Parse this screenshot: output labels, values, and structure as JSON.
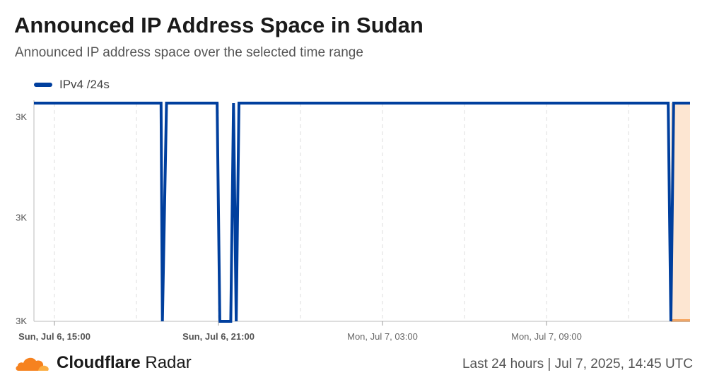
{
  "header": {
    "title": "Announced IP Address Space in Sudan",
    "subtitle": "Announced IP address space over the selected time range"
  },
  "footer": {
    "brand_bold": "Cloudflare",
    "brand_rest": " Radar",
    "range_label": "Last 24 hours | Jul 7, 2025, 14:45 UTC"
  },
  "colors": {
    "series": "#003f9e",
    "highlight_fill": "#fde6d2",
    "highlight_line": "#f6a25a",
    "grid": "#dddddd",
    "axis": "#bbbbbb",
    "logo_orange": "#f6821f",
    "logo_light": "#fbad41"
  },
  "icons": {
    "logo": "cloudflare-cloud-icon"
  },
  "chart_data": {
    "type": "line",
    "title": "Announced IP Address Space in Sudan",
    "subtitle": "Announced IP address space over the selected time range",
    "xlabel": "",
    "ylabel": "",
    "x_range_hours": [
      -0.75,
      23.25
    ],
    "y_tick_labels": [
      "3K",
      "3K",
      "3K"
    ],
    "y_tick_levels": [
      "high",
      "mid",
      "low"
    ],
    "x_ticks": [
      {
        "label": "Sun, Jul 6, 15:00",
        "hour": 0,
        "bold": true
      },
      {
        "label": "Sun, Jul 6, 21:00",
        "hour": 6,
        "bold": true
      },
      {
        "label": "Mon, Jul 7, 03:00",
        "hour": 12,
        "bold": false
      },
      {
        "label": "Mon, Jul 7, 09:00",
        "hour": 18,
        "bold": false
      }
    ],
    "grid_hours": [
      0,
      3,
      6,
      9,
      12,
      15,
      18,
      21
    ],
    "grid": true,
    "legend_position": "top-left",
    "series": [
      {
        "name": "IPv4 /24s",
        "points": [
          [
            -0.75,
            1
          ],
          [
            3.9,
            1
          ],
          [
            3.95,
            0
          ],
          [
            4.1,
            1
          ],
          [
            5.95,
            1
          ],
          [
            6.05,
            0
          ],
          [
            6.45,
            0
          ],
          [
            6.55,
            1
          ],
          [
            6.65,
            0
          ],
          [
            6.75,
            1
          ],
          [
            22.45,
            1
          ],
          [
            22.55,
            0
          ],
          [
            22.65,
            1
          ],
          [
            23.25,
            1
          ]
        ]
      }
    ],
    "highlight": {
      "start_hour": 22.55,
      "end_hour": 23.25,
      "value": 0
    }
  }
}
